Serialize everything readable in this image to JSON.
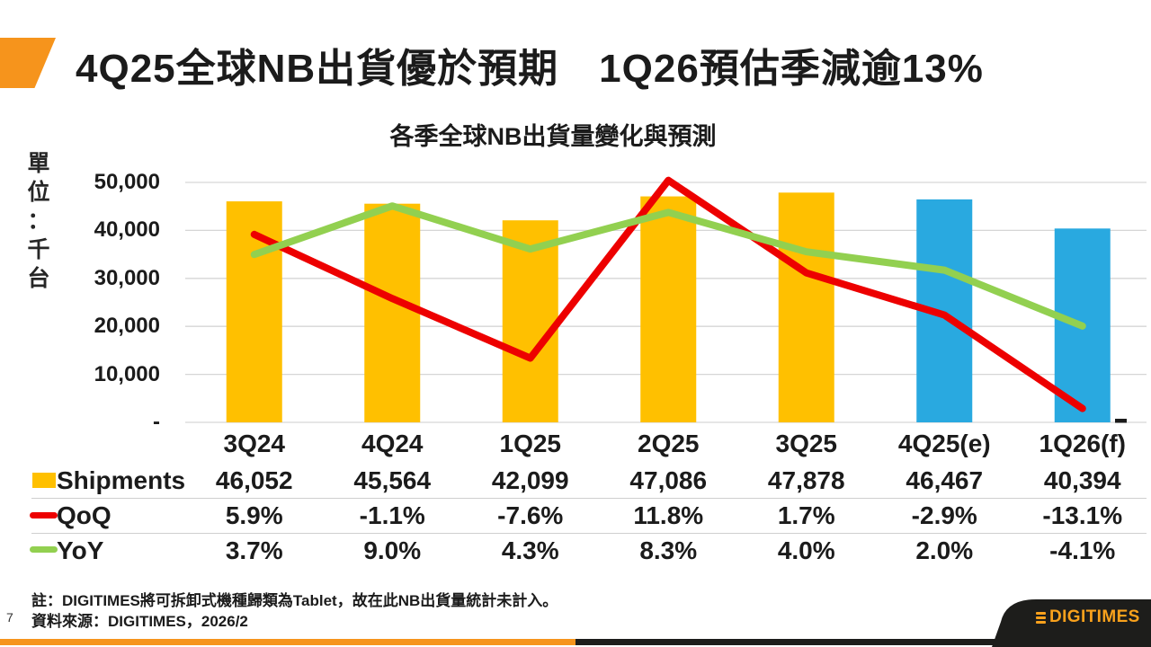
{
  "slide": {
    "title": "4Q25全球NB出貨優於預期　1Q26預估季減逾13%",
    "page_number": "7",
    "footnote_note": "註：DIGITIMES將可拆卸式機種歸類為Tablet，故在此NB出貨量統計未計入。",
    "footnote_source": "資料來源：DIGITIMES，2026/2",
    "logo_text": "DIGITIMES"
  },
  "chart_data": {
    "type": "combo-bar-line",
    "title": "各季全球NB出貨量變化與預測",
    "unit_label": "單位：千台",
    "categories": [
      "3Q24",
      "4Q24",
      "1Q25",
      "2Q25",
      "3Q25",
      "4Q25(e)",
      "1Q26(f)"
    ],
    "series": [
      {
        "name": "Shipments",
        "type": "bar",
        "unit": "thousand units",
        "values": [
          46052,
          45564,
          42099,
          47086,
          47878,
          46467,
          40394
        ],
        "color_actual": "#FFC000",
        "color_forecast": "#29A9E0",
        "forecast_from_index": 5
      },
      {
        "name": "QoQ",
        "type": "line",
        "unit": "%",
        "values": [
          5.9,
          -1.1,
          -7.6,
          11.8,
          1.7,
          -2.9,
          -13.1
        ],
        "color": "#ED0000"
      },
      {
        "name": "YoY",
        "type": "line",
        "unit": "%",
        "values": [
          3.7,
          9.0,
          4.3,
          8.3,
          4.0,
          2.0,
          -4.1
        ],
        "color": "#92D050"
      }
    ],
    "y_axis": {
      "min": 0,
      "max": 50000,
      "tick_labels": [
        "50,000",
        "40,000",
        "30,000",
        "20,000",
        "10,000",
        "-"
      ]
    },
    "grid": true,
    "legend_position": "table-left"
  },
  "table": {
    "rows": [
      {
        "label": "Shipments",
        "swatch": "bar-orange",
        "values": [
          "46,052",
          "45,564",
          "42,099",
          "47,086",
          "47,878",
          "46,467",
          "40,394"
        ]
      },
      {
        "label": "QoQ",
        "swatch": "line-red",
        "values": [
          "5.9%",
          "-1.1%",
          "-7.6%",
          "11.8%",
          "1.7%",
          "-2.9%",
          "-13.1%"
        ]
      },
      {
        "label": "YoY",
        "swatch": "line-green",
        "values": [
          "3.7%",
          "9.0%",
          "4.3%",
          "8.3%",
          "4.0%",
          "2.0%",
          "-4.1%"
        ]
      }
    ]
  },
  "colors": {
    "accent_orange": "#F6941C",
    "bar_actual": "#FFC000",
    "bar_forecast": "#29A9E0",
    "qoq_red": "#ED0000",
    "yoy_green": "#92D050",
    "gridline": "#D6D6D6",
    "logo_bg": "#1D1D1B",
    "text": "#1B1B1B"
  }
}
